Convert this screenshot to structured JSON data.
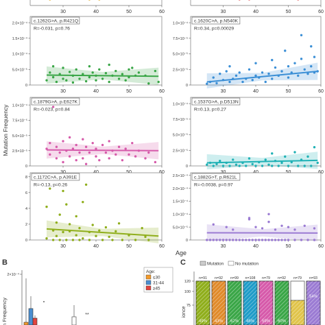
{
  "figure": {
    "y_axis_label": "Mutation Frequency",
    "x_axis_label": "Age",
    "panel_B_letter": "B",
    "panel_C_letter": "C"
  },
  "chart_data": [
    {
      "type": "scatter",
      "panel": "A-top-left-partial",
      "xlim": [
        20,
        60
      ],
      "xticks": [
        30,
        40,
        50,
        60
      ],
      "color": "#e0a81c",
      "points": [
        [
          26,
          0
        ],
        [
          30,
          0
        ],
        [
          33,
          0
        ],
        [
          36,
          0
        ],
        [
          38,
          0
        ],
        [
          41,
          0
        ],
        [
          46,
          0
        ],
        [
          48,
          0
        ]
      ]
    },
    {
      "type": "scatter",
      "panel": "A-top-right-partial",
      "xlim": [
        20,
        60
      ],
      "xticks": [
        30,
        40,
        50,
        60
      ],
      "color": "#e2585a",
      "points": [
        [
          28,
          0
        ],
        [
          31,
          0
        ],
        [
          35,
          0
        ],
        [
          38,
          0
        ],
        [
          42,
          0
        ],
        [
          45,
          0
        ],
        [
          49,
          0
        ],
        [
          53,
          0
        ],
        [
          57,
          0
        ]
      ]
    },
    {
      "type": "scatter",
      "panel": "A-row1-left",
      "mutation": "c.1262G>A, p.R421Q",
      "stat": "R=-0.031, p=0.76",
      "color": "#3aa647",
      "xlim": [
        20,
        60
      ],
      "xticks": [
        30,
        40,
        50,
        60
      ],
      "ylim": [
        0,
        2.2
      ],
      "yticks_label": [
        "0",
        "5.0×10⁻⁵",
        "1.0×10⁻⁴",
        "1.5×10⁻⁴",
        "2.0×10⁻⁴"
      ],
      "ytick_values": [
        0,
        0.5,
        1.0,
        1.5,
        2.0
      ],
      "fit": [
        [
          25,
          0.32
        ],
        [
          59,
          0.28
        ]
      ],
      "points": [
        [
          25,
          0.15
        ],
        [
          26,
          0.4
        ],
        [
          27,
          0.25
        ],
        [
          27,
          0.6
        ],
        [
          28,
          0.1
        ],
        [
          29,
          0.35
        ],
        [
          30,
          0.2
        ],
        [
          30,
          0.55
        ],
        [
          31,
          0.15
        ],
        [
          32,
          0.42
        ],
        [
          33,
          0.3
        ],
        [
          33,
          0.08
        ],
        [
          34,
          0.5
        ],
        [
          35,
          0.2
        ],
        [
          36,
          0.35
        ],
        [
          37,
          0.12
        ],
        [
          38,
          0.6
        ],
        [
          38,
          0.25
        ],
        [
          39,
          0.4
        ],
        [
          40,
          0.15
        ],
        [
          40,
          0.3
        ],
        [
          41,
          0.5
        ],
        [
          42,
          0.2
        ],
        [
          43,
          0.38
        ],
        [
          44,
          0.1
        ],
        [
          44,
          0.65
        ],
        [
          45,
          0.3
        ],
        [
          46,
          0.45
        ],
        [
          47,
          0.2
        ],
        [
          48,
          0.35
        ],
        [
          49,
          0.15
        ],
        [
          50,
          0.5
        ],
        [
          50,
          0.25
        ],
        [
          51,
          0.55
        ],
        [
          52,
          0.3
        ],
        [
          53,
          0.4
        ],
        [
          55,
          0.3
        ],
        [
          56,
          0.05
        ],
        [
          58,
          0.45
        ],
        [
          59,
          0.1
        ]
      ]
    },
    {
      "type": "scatter",
      "panel": "A-row1-right",
      "mutation": "c.1620C>A, p.N540K",
      "stat": "R=0.34, p=0.00029",
      "color": "#3b8fd6",
      "xlim": [
        20,
        60
      ],
      "xticks": [
        30,
        40,
        50,
        60
      ],
      "ylim": [
        0,
        1.1
      ],
      "yticks_label": [
        "0",
        "2.5×10⁻⁵",
        "5.0×10⁻⁵",
        "7.5×10⁻⁵",
        "1.0×10⁻⁴"
      ],
      "ytick_values": [
        0,
        0.25,
        0.5,
        0.75,
        1.0
      ],
      "fit": [
        [
          25,
          0.05
        ],
        [
          59,
          0.22
        ]
      ],
      "points": [
        [
          25,
          0.02
        ],
        [
          26,
          0.05
        ],
        [
          27,
          0.12
        ],
        [
          28,
          0.03
        ],
        [
          29,
          0.18
        ],
        [
          30,
          0.08
        ],
        [
          31,
          0.22
        ],
        [
          32,
          0.05
        ],
        [
          32,
          0.3
        ],
        [
          33,
          0.1
        ],
        [
          34,
          0.15
        ],
        [
          35,
          0.2
        ],
        [
          36,
          0.05
        ],
        [
          37,
          0.1
        ],
        [
          38,
          0.25
        ],
        [
          39,
          0.08
        ],
        [
          40,
          0.35
        ],
        [
          40,
          0.15
        ],
        [
          41,
          0.12
        ],
        [
          42,
          0.2
        ],
        [
          43,
          0.05
        ],
        [
          44,
          0.18
        ],
        [
          45,
          0.4
        ],
        [
          45,
          0.1
        ],
        [
          46,
          0.28
        ],
        [
          47,
          0.15
        ],
        [
          48,
          0.22
        ],
        [
          49,
          0.55
        ],
        [
          50,
          0.12
        ],
        [
          50,
          0.3
        ],
        [
          51,
          0.2
        ],
        [
          52,
          0.35
        ],
        [
          53,
          0.15
        ],
        [
          54,
          0.42
        ],
        [
          55,
          0.25
        ],
        [
          56,
          0.18
        ],
        [
          57,
          0.3
        ],
        [
          58,
          0.2
        ],
        [
          58,
          0.45
        ],
        [
          59,
          0.22
        ],
        [
          57,
          0.62
        ],
        [
          54,
          0.8
        ]
      ]
    },
    {
      "type": "scatter",
      "panel": "A-row2-left",
      "mutation": "c.1879G>A, p.E627K",
      "stat": "R=-0.023, p=0.84",
      "color": "#d65aaa",
      "xlim": [
        20,
        60
      ],
      "xticks": [
        30,
        40,
        50,
        60
      ],
      "ylim": [
        0,
        1.8
      ],
      "yticks_label": [
        "0",
        "2.5×10⁻⁵",
        "5.0×10⁻⁵",
        "7.5×10⁻⁵",
        "1.0×10⁻⁴"
      ],
      "ytick_values": [
        0,
        0.4,
        0.8,
        1.2,
        1.6
      ],
      "fit": [
        [
          25,
          0.42
        ],
        [
          59,
          0.4
        ]
      ],
      "points": [
        [
          25,
          0.45
        ],
        [
          26,
          0.3
        ],
        [
          26,
          0.6
        ],
        [
          27,
          1.55
        ],
        [
          28,
          0.2
        ],
        [
          28,
          0.5
        ],
        [
          29,
          0.35
        ],
        [
          30,
          0.65
        ],
        [
          30,
          0.1
        ],
        [
          31,
          0.4
        ],
        [
          32,
          0.25
        ],
        [
          32,
          0.75
        ],
        [
          33,
          0.45
        ],
        [
          34,
          0.15
        ],
        [
          34,
          0.55
        ],
        [
          35,
          0.35
        ],
        [
          36,
          0.7
        ],
        [
          36,
          0.2
        ],
        [
          37,
          0.5
        ],
        [
          37,
          0.05
        ],
        [
          38,
          0.35
        ],
        [
          39,
          0.6
        ],
        [
          40,
          0.25
        ],
        [
          40,
          0.45
        ],
        [
          41,
          0.15
        ],
        [
          42,
          0.55
        ],
        [
          43,
          0.35
        ],
        [
          44,
          0.2
        ],
        [
          44,
          0.65
        ],
        [
          45,
          0.4
        ],
        [
          46,
          0.3
        ],
        [
          47,
          0.5
        ],
        [
          48,
          0.15
        ],
        [
          49,
          0.45
        ],
        [
          50,
          0.3
        ],
        [
          51,
          0.6
        ],
        [
          52,
          0.25
        ],
        [
          53,
          0.4
        ],
        [
          55,
          0.2
        ],
        [
          56,
          0.35
        ],
        [
          58,
          0.1
        ]
      ]
    },
    {
      "type": "scatter",
      "panel": "A-row2-right",
      "mutation": "c.1537G>A, p.D513N",
      "stat": "R=0.13, p=0.27",
      "color": "#1fb1b5",
      "xlim": [
        20,
        60
      ],
      "xticks": [
        30,
        40,
        50,
        60
      ],
      "ylim": [
        0,
        1.1
      ],
      "yticks_label": [
        "0",
        "2.5×10⁻⁵",
        "5.0×10⁻⁵",
        "7.5×10⁻⁵",
        "1.0×10⁻⁴"
      ],
      "ytick_values": [
        0,
        0.25,
        0.5,
        0.75,
        1.0
      ],
      "fit": [
        [
          25,
          0.05
        ],
        [
          59,
          0.09
        ]
      ],
      "points": [
        [
          25,
          0.02
        ],
        [
          26,
          0.05
        ],
        [
          27,
          0.0
        ],
        [
          28,
          0.03
        ],
        [
          29,
          0.08
        ],
        [
          30,
          0.0
        ],
        [
          31,
          0.05
        ],
        [
          32,
          0.0
        ],
        [
          33,
          0.1
        ],
        [
          34,
          0.02
        ],
        [
          35,
          0.0
        ],
        [
          36,
          0.05
        ],
        [
          37,
          0.0
        ],
        [
          38,
          0.12
        ],
        [
          39,
          0.03
        ],
        [
          40,
          0.0
        ],
        [
          41,
          0.06
        ],
        [
          42,
          0.0
        ],
        [
          43,
          0.1
        ],
        [
          44,
          0.02
        ],
        [
          45,
          0.0
        ],
        [
          46,
          0.08
        ],
        [
          47,
          0.0
        ],
        [
          48,
          0.05
        ],
        [
          49,
          0.15
        ],
        [
          50,
          0.0
        ],
        [
          51,
          0.06
        ],
        [
          52,
          0.22
        ],
        [
          53,
          0.0
        ],
        [
          54,
          0.1
        ],
        [
          55,
          0.0
        ],
        [
          56,
          0.15
        ],
        [
          57,
          0.0
        ],
        [
          58,
          0.3
        ],
        [
          59,
          0.05
        ],
        [
          45,
          0.2
        ]
      ]
    },
    {
      "type": "scatter",
      "panel": "A-row3-left",
      "mutation": "c.1172C>A, p.A391E",
      "stat": "R=-0.13, p=0.26",
      "color": "#8fae1b",
      "xlim": [
        20,
        60
      ],
      "xticks": [
        30,
        40,
        50,
        60
      ],
      "ylim": [
        0,
        8.5
      ],
      "yticks_label": [
        "0",
        "2",
        "4",
        "6",
        "8"
      ],
      "ytick_values": [
        0,
        2,
        4,
        6,
        8
      ],
      "fit": [
        [
          25,
          1.4
        ],
        [
          59,
          0.5
        ]
      ],
      "points": [
        [
          25,
          0.2
        ],
        [
          25,
          4.2
        ],
        [
          26,
          6.5
        ],
        [
          26,
          8.0
        ],
        [
          27,
          1.2
        ],
        [
          27,
          0.0
        ],
        [
          28,
          2.2
        ],
        [
          28,
          0.5
        ],
        [
          29,
          0.0
        ],
        [
          29,
          3.2
        ],
        [
          30,
          1.0
        ],
        [
          30,
          6.2
        ],
        [
          31,
          0.0
        ],
        [
          31,
          4.5
        ],
        [
          32,
          2.0
        ],
        [
          32,
          1.1
        ],
        [
          33,
          0.0
        ],
        [
          34,
          3.0
        ],
        [
          34,
          0.6
        ],
        [
          35,
          1.5
        ],
        [
          35,
          0.0
        ],
        [
          36,
          4.8
        ],
        [
          36,
          0.2
        ],
        [
          37,
          7.0
        ],
        [
          38,
          1.0
        ],
        [
          38,
          0.0
        ],
        [
          39,
          1.9
        ],
        [
          40,
          0.5
        ],
        [
          41,
          1.2
        ],
        [
          42,
          0.0
        ],
        [
          43,
          1.6
        ],
        [
          44,
          0.4
        ],
        [
          45,
          0.0
        ],
        [
          46,
          1.1
        ],
        [
          47,
          2.1
        ],
        [
          48,
          0.0
        ],
        [
          50,
          0.6
        ],
        [
          52,
          0.0
        ],
        [
          54,
          1.5
        ],
        [
          55,
          0.4
        ],
        [
          56,
          0.0
        ]
      ]
    },
    {
      "type": "scatter",
      "panel": "A-row3-right",
      "mutation": "c.1882G>T, p.R621L",
      "stat": "R=-0.0038, p=0.97",
      "color": "#9b7bd3",
      "xlim": [
        20,
        60
      ],
      "xticks": [
        30,
        40,
        50,
        60
      ],
      "ylim": [
        0,
        2.6
      ],
      "yticks_label": [
        "0",
        "5.0×10⁻⁵",
        "1.0×10⁻⁴",
        "1.5×10⁻⁴",
        "2.0×10⁻⁴",
        "2.5×10⁻⁴"
      ],
      "ytick_values": [
        0,
        0.5,
        1.0,
        1.5,
        2.0,
        2.5
      ],
      "fit": [
        [
          25,
          0.28
        ],
        [
          59,
          0.27
        ]
      ],
      "points": [
        [
          25,
          0.0
        ],
        [
          26,
          0.0
        ],
        [
          27,
          0.0
        ],
        [
          28,
          0.0
        ],
        [
          29,
          0.0
        ],
        [
          30,
          0.0
        ],
        [
          31,
          0.0
        ],
        [
          32,
          0.0
        ],
        [
          33,
          0.0
        ],
        [
          34,
          0.0
        ],
        [
          35,
          0.0
        ],
        [
          36,
          0.0
        ],
        [
          37,
          0.0
        ],
        [
          38,
          0.0
        ],
        [
          39,
          0.0
        ],
        [
          40,
          0.0
        ],
        [
          41,
          0.0
        ],
        [
          42,
          0.0
        ],
        [
          43,
          0.0
        ],
        [
          44,
          0.0
        ],
        [
          45,
          0.0
        ],
        [
          46,
          0.0
        ],
        [
          47,
          0.0
        ],
        [
          48,
          0.0
        ],
        [
          49,
          0.0
        ],
        [
          50,
          0.0
        ],
        [
          52,
          0.0
        ],
        [
          54,
          0.0
        ],
        [
          56,
          0.0
        ],
        [
          58,
          0.0
        ],
        [
          27,
          0.6
        ],
        [
          31,
          0.5
        ],
        [
          33,
          0.4
        ],
        [
          38,
          0.8
        ],
        [
          40,
          0.5
        ],
        [
          42,
          0.45
        ],
        [
          44,
          0.7
        ],
        [
          46,
          0.4
        ],
        [
          48,
          0.55
        ],
        [
          50,
          0.5
        ],
        [
          52,
          0.4
        ],
        [
          55,
          0.55
        ],
        [
          58,
          0.45
        ],
        [
          44,
          1.0
        ],
        [
          38,
          0.85
        ]
      ]
    },
    {
      "type": "boxplot",
      "panel": "B",
      "ytick_label": "2×10⁻⁴",
      "ylabel_partial": "n Frequency",
      "legend_title": "Age:",
      "legend": [
        {
          "name": "≤30",
          "color": "#f39a2b"
        },
        {
          "name": "31-44",
          "color": "#4a8ed0"
        },
        {
          "name": "≥45",
          "color": "#e2443f"
        }
      ],
      "annotation": "**"
    },
    {
      "type": "bar",
      "panel": "C",
      "legend": [
        {
          "name": "Mutation",
          "pattern": "hatched"
        },
        {
          "name": "No mutation",
          "pattern": "solid"
        }
      ],
      "ytick_labels": [
        "120",
        "100",
        "75"
      ],
      "ylabel_partial": "ionce",
      "counts": [
        "n=91",
        "n=92",
        "n=99",
        "n=108",
        "n=79",
        "n=92",
        "n=79",
        "n=93"
      ],
      "bar_colors": [
        "#8fae1b",
        "#e08a2a",
        "#3aa647",
        "#1f9cc8",
        "#d65aaa",
        "#3aa647",
        "#e0c44a",
        "#9b7bd3"
      ],
      "percent_labels": [
        "49%",
        "43%",
        "62%",
        "45%",
        "59%",
        "60%",
        "32%",
        "54%"
      ]
    }
  ]
}
